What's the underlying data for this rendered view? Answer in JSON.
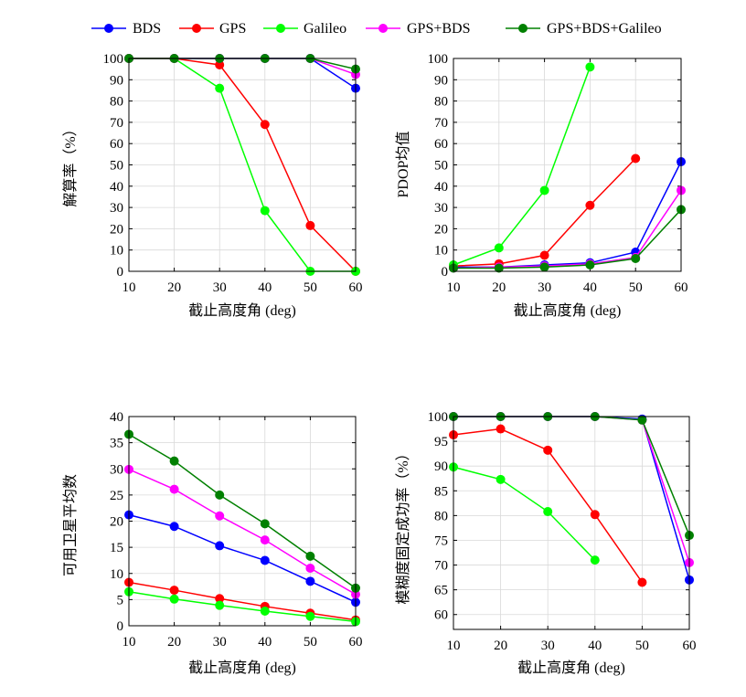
{
  "legend": [
    {
      "name": "BDS",
      "color": "#0000ff"
    },
    {
      "name": "GPS",
      "color": "#ff0000"
    },
    {
      "name": "Galileo",
      "color": "#00ff00"
    },
    {
      "name": "GPS+BDS",
      "color": "#ff00ff"
    },
    {
      "name": "GPS+BDS+Galileo",
      "color": "#008000"
    }
  ],
  "chart_data": [
    {
      "type": "line",
      "title": "",
      "xlabel": "截止高度角 (deg)",
      "ylabel": "解算率（%）",
      "xlim": [
        10,
        60
      ],
      "ylim": [
        0,
        100
      ],
      "xticks": [
        10,
        20,
        30,
        40,
        50,
        60
      ],
      "yticks": [
        0,
        10,
        20,
        30,
        40,
        50,
        60,
        70,
        80,
        90,
        100
      ],
      "grid": true,
      "series": [
        {
          "name": "BDS",
          "color": "#0000ff",
          "x": [
            10,
            20,
            30,
            40,
            50,
            60
          ],
          "y": [
            100,
            100,
            100,
            100,
            100,
            86
          ]
        },
        {
          "name": "GPS",
          "color": "#ff0000",
          "x": [
            10,
            20,
            30,
            40,
            50,
            60
          ],
          "y": [
            100,
            100,
            97,
            69,
            21.5,
            0
          ]
        },
        {
          "name": "Galileo",
          "color": "#00ff00",
          "x": [
            10,
            20,
            30,
            40,
            50,
            60
          ],
          "y": [
            100,
            100,
            86,
            28.5,
            0,
            0
          ]
        },
        {
          "name": "GPS+BDS",
          "color": "#ff00ff",
          "x": [
            10,
            20,
            30,
            40,
            50,
            60
          ],
          "y": [
            100,
            100,
            100,
            100,
            100,
            92.5
          ]
        },
        {
          "name": "GPS+BDS+Galileo",
          "color": "#008000",
          "x": [
            10,
            20,
            30,
            40,
            50,
            60
          ],
          "y": [
            100,
            100,
            100,
            100,
            100,
            95
          ]
        }
      ]
    },
    {
      "type": "line",
      "title": "",
      "xlabel": "截止高度角 (deg)",
      "ylabel": "PDOP均值",
      "xlim": [
        10,
        60
      ],
      "ylim": [
        0,
        100
      ],
      "xticks": [
        10,
        20,
        30,
        40,
        50,
        60
      ],
      "yticks": [
        0,
        10,
        20,
        30,
        40,
        50,
        60,
        70,
        80,
        90,
        100
      ],
      "grid": true,
      "series": [
        {
          "name": "BDS",
          "color": "#0000ff",
          "x": [
            10,
            20,
            30,
            40,
            50,
            60
          ],
          "y": [
            2,
            2,
            3,
            4,
            9,
            51.5
          ]
        },
        {
          "name": "GPS",
          "color": "#ff0000",
          "x": [
            10,
            20,
            30,
            40,
            50
          ],
          "y": [
            2.5,
            3.5,
            7.5,
            31,
            53
          ]
        },
        {
          "name": "Galileo",
          "color": "#00ff00",
          "x": [
            10,
            20,
            30,
            40
          ],
          "y": [
            3,
            11,
            38,
            96
          ]
        },
        {
          "name": "GPS+BDS",
          "color": "#ff00ff",
          "x": [
            10,
            20,
            30,
            40,
            50,
            60
          ],
          "y": [
            1.5,
            2,
            2.5,
            3.5,
            6.5,
            38
          ]
        },
        {
          "name": "GPS+BDS+Galileo",
          "color": "#008000",
          "x": [
            10,
            20,
            30,
            40,
            50,
            60
          ],
          "y": [
            1.5,
            1.5,
            2,
            3,
            6,
            29
          ]
        }
      ]
    },
    {
      "type": "line",
      "title": "",
      "xlabel": "截止高度角 (deg)",
      "ylabel": "可用卫星平均数",
      "xlim": [
        10,
        60
      ],
      "ylim": [
        0,
        40
      ],
      "xticks": [
        10,
        20,
        30,
        40,
        50,
        60
      ],
      "yticks": [
        0,
        5,
        10,
        15,
        20,
        25,
        30,
        35,
        40
      ],
      "grid": true,
      "series": [
        {
          "name": "BDS",
          "color": "#0000ff",
          "x": [
            10,
            20,
            30,
            40,
            50,
            60
          ],
          "y": [
            21.2,
            19,
            15.3,
            12.5,
            8.5,
            4.5
          ]
        },
        {
          "name": "GPS",
          "color": "#ff0000",
          "x": [
            10,
            20,
            30,
            40,
            50,
            60
          ],
          "y": [
            8.3,
            6.8,
            5.2,
            3.7,
            2.4,
            1.1
          ]
        },
        {
          "name": "Galileo",
          "color": "#00ff00",
          "x": [
            10,
            20,
            30,
            40,
            50,
            60
          ],
          "y": [
            6.5,
            5.1,
            3.9,
            2.8,
            1.8,
            0.8
          ]
        },
        {
          "name": "GPS+BDS",
          "color": "#ff00ff",
          "x": [
            10,
            20,
            30,
            40,
            50,
            60
          ],
          "y": [
            29.9,
            26.1,
            21,
            16.4,
            11,
            6
          ]
        },
        {
          "name": "GPS+BDS+Galileo",
          "color": "#008000",
          "x": [
            10,
            20,
            30,
            40,
            50,
            60
          ],
          "y": [
            36.6,
            31.5,
            25,
            19.5,
            13.3,
            7.2
          ]
        }
      ]
    },
    {
      "type": "line",
      "title": "",
      "xlabel": "截止高度角 (deg)",
      "ylabel": "模糊度固定成功率（%）",
      "xlim": [
        10,
        60
      ],
      "ylim": [
        57,
        100
      ],
      "xticks": [
        10,
        20,
        30,
        40,
        50,
        60
      ],
      "yticks": [
        60,
        65,
        70,
        75,
        80,
        85,
        90,
        95,
        100
      ],
      "grid": true,
      "series": [
        {
          "name": "BDS",
          "color": "#0000ff",
          "x": [
            10,
            20,
            30,
            40,
            50,
            60
          ],
          "y": [
            100,
            100,
            100,
            100,
            99.5,
            67
          ]
        },
        {
          "name": "GPS",
          "color": "#ff0000",
          "x": [
            10,
            20,
            30,
            40,
            50
          ],
          "y": [
            96.3,
            97.5,
            93.2,
            80.2,
            66.5
          ]
        },
        {
          "name": "Galileo",
          "color": "#00ff00",
          "x": [
            10,
            20,
            30,
            40
          ],
          "y": [
            89.8,
            87.3,
            80.8,
            71
          ]
        },
        {
          "name": "GPS+BDS",
          "color": "#ff00ff",
          "x": [
            10,
            20,
            30,
            40,
            50,
            60
          ],
          "y": [
            100,
            100,
            100,
            100,
            99.3,
            70.5
          ]
        },
        {
          "name": "GPS+BDS+Galileo",
          "color": "#008000",
          "x": [
            10,
            20,
            30,
            40,
            50,
            60
          ],
          "y": [
            100,
            100,
            100,
            100,
            99.3,
            76
          ]
        }
      ]
    }
  ]
}
